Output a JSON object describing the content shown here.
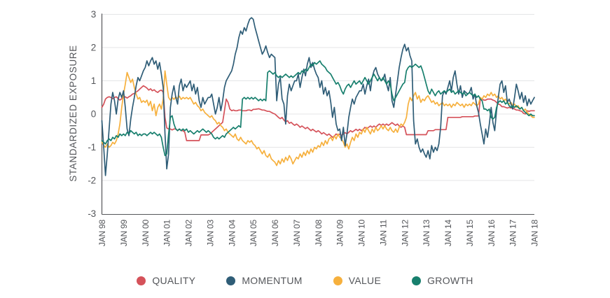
{
  "y_axis": {
    "title": "STANDARDIZED EXPOSURE",
    "ticks": [
      "3",
      "2",
      "1",
      "0",
      "-1",
      "-2",
      "-3"
    ]
  },
  "x_axis": {
    "ticks": [
      "JAN 98",
      "JAN 99",
      "JAN 00",
      "JAN 01",
      "JAN 02",
      "JAN 03",
      "JAN 04",
      "JAN 05",
      "JAN 06",
      "JAN 07",
      "JAN 08",
      "JAN 09",
      "JAN 10",
      "JAN 11",
      "JAN 12",
      "JAN 13",
      "JAN 14",
      "JAN 15",
      "JAN 16",
      "JAN 17",
      "JAN 18"
    ]
  },
  "colors": {
    "quality": "#d5525a",
    "momentum": "#2f5d77",
    "value": "#f6b03d",
    "growth": "#177f6d",
    "grid": "#e4e5e7",
    "axis": "#55565a",
    "text": "#54565a"
  },
  "chart_data": {
    "type": "line",
    "title": "",
    "xlabel": "",
    "ylabel": "STANDARDIZED EXPOSURE",
    "ylim": [
      -3,
      3
    ],
    "grid": true,
    "legend_position": "bottom",
    "x_start": "1998-01",
    "x_end": "2018-01",
    "frequency": "monthly",
    "x_tick_labels": [
      "JAN 98",
      "JAN 99",
      "JAN 00",
      "JAN 01",
      "JAN 02",
      "JAN 03",
      "JAN 04",
      "JAN 05",
      "JAN 06",
      "JAN 07",
      "JAN 08",
      "JAN 09",
      "JAN 10",
      "JAN 11",
      "JAN 12",
      "JAN 13",
      "JAN 14",
      "JAN 15",
      "JAN 16",
      "JAN 17",
      "JAN 18"
    ],
    "series": [
      {
        "name": "QUALITY",
        "color": "#d5525a",
        "values": [
          0.2,
          0.3,
          0.45,
          0.5,
          0.52,
          0.5,
          0.46,
          0.5,
          0.52,
          0.46,
          0.42,
          0.46,
          0.5,
          0.52,
          0.48,
          0.52,
          0.55,
          0.6,
          0.62,
          0.66,
          0.7,
          0.75,
          0.8,
          0.85,
          0.82,
          0.78,
          0.72,
          0.76,
          0.7,
          0.73,
          0.68,
          0.65,
          0.7,
          0.72,
          0.66,
          -0.1,
          -0.42,
          -0.45,
          -0.45,
          -0.48,
          -0.45,
          -0.45,
          -0.5,
          -0.45,
          -0.5,
          -0.5,
          -0.55,
          -0.8,
          -0.8,
          -0.8,
          -0.8,
          -0.8,
          -0.8,
          -0.8,
          -0.8,
          -0.63,
          -0.63,
          -0.63,
          -0.63,
          -0.63,
          -0.6,
          -0.55,
          -0.5,
          -0.45,
          -0.4,
          -0.35,
          -0.3,
          -0.25,
          0.1,
          0.45,
          0.35,
          0.15,
          0.1,
          0.12,
          0.1,
          0.1,
          0.12,
          0.12,
          0.1,
          0.1,
          0.1,
          0.12,
          0.12,
          0.1,
          0.14,
          0.14,
          0.15,
          0.16,
          0.14,
          0.12,
          0.12,
          0.1,
          0.08,
          0.08,
          0.05,
          0.02,
          0.0,
          -0.05,
          -0.1,
          -0.14,
          -0.1,
          -0.18,
          -0.24,
          -0.2,
          -0.28,
          -0.25,
          -0.3,
          -0.34,
          -0.3,
          -0.34,
          -0.4,
          -0.36,
          -0.4,
          -0.44,
          -0.4,
          -0.45,
          -0.5,
          -0.46,
          -0.5,
          -0.54,
          -0.5,
          -0.54,
          -0.6,
          -0.56,
          -0.6,
          -0.64,
          -0.6,
          -0.65,
          -0.7,
          -0.66,
          -0.6,
          -0.64,
          -0.6,
          -0.64,
          -0.6,
          -0.56,
          -0.6,
          -0.55,
          -0.5,
          -0.54,
          -0.5,
          -0.46,
          -0.5,
          -0.46,
          -0.5,
          -0.46,
          -0.4,
          -0.44,
          -0.4,
          -0.36,
          -0.4,
          -0.36,
          -0.4,
          -0.34,
          -0.3,
          -0.34,
          -0.3,
          -0.34,
          -0.3,
          -0.34,
          -0.3,
          -0.26,
          -0.3,
          -0.34,
          -0.3,
          -0.36,
          -0.4,
          -0.36,
          -0.4,
          -0.62,
          -0.62,
          -0.62,
          -0.62,
          -0.62,
          -0.62,
          -0.62,
          -0.62,
          -0.62,
          -0.62,
          -0.62,
          -0.62,
          -0.5,
          -0.5,
          -0.5,
          -0.5,
          -0.47,
          -0.47,
          -0.47,
          -0.47,
          -0.47,
          -0.47,
          -0.47,
          -0.1,
          -0.1,
          -0.1,
          -0.1,
          -0.1,
          -0.1,
          -0.1,
          -0.1,
          -0.08,
          -0.08,
          -0.08,
          -0.08,
          -0.08,
          -0.08,
          -0.08,
          -0.06,
          -0.06,
          -0.06,
          0.45,
          0.45,
          0.42,
          0.42,
          0.45,
          0.45,
          0.45,
          0.42,
          0.4,
          0.35,
          0.3,
          0.28,
          0.22,
          0.22,
          0.2,
          0.18,
          0.2,
          0.18,
          0.18,
          0.15,
          0.12,
          0.12,
          0.1,
          0.08,
          0.02,
          0.0,
          0.1,
          0.08,
          0.1,
          0.1,
          0.1
        ]
      },
      {
        "name": "MOMENTUM",
        "color": "#2f5d77",
        "values": [
          -0.2,
          -1.0,
          -1.85,
          -1.2,
          -0.45,
          0.3,
          0.65,
          0.4,
          0.0,
          0.45,
          0.65,
          0.5,
          0.7,
          0.2,
          -0.45,
          -0.65,
          -0.15,
          0.2,
          0.5,
          0.85,
          1.1,
          1.0,
          1.15,
          1.3,
          1.4,
          1.6,
          1.45,
          1.6,
          1.7,
          1.5,
          1.6,
          1.35,
          1.55,
          1.2,
          0.8,
          -0.6,
          -1.65,
          -1.2,
          0.2,
          0.6,
          0.85,
          0.5,
          0.3,
          0.85,
          1.05,
          0.7,
          0.9,
          0.8,
          0.9,
          1.0,
          0.7,
          0.9,
          0.6,
          0.8,
          0.4,
          0.2,
          0.5,
          0.3,
          0.4,
          0.5,
          0.5,
          0.6,
          0.3,
          0.0,
          0.2,
          0.5,
          0.1,
          0.4,
          0.8,
          1.0,
          1.1,
          1.2,
          1.3,
          1.5,
          1.8,
          2.0,
          2.3,
          2.5,
          2.4,
          2.6,
          2.5,
          2.7,
          2.85,
          2.9,
          2.85,
          2.6,
          2.4,
          2.2,
          2.0,
          1.8,
          1.9,
          2.05,
          1.85,
          1.7,
          1.8,
          1.75,
          1.7,
          0.4,
          0.9,
          1.1,
          0.45,
          0.3,
          -0.3,
          0.55,
          0.9,
          0.7,
          0.85,
          1.0,
          1.0,
          1.2,
          0.8,
          1.1,
          1.35,
          1.15,
          1.5,
          1.7,
          1.4,
          1.55,
          1.35,
          1.2,
          1.1,
          0.8,
          1.0,
          0.6,
          0.8,
          0.55,
          0.7,
          0.35,
          -0.1,
          0.2,
          -0.3,
          -0.5,
          -0.45,
          -0.8,
          -0.4,
          -0.95,
          -0.6,
          -0.1,
          0.2,
          0.45,
          0.3,
          0.5,
          0.6,
          0.7,
          0.7,
          0.9,
          0.6,
          0.85,
          1.05,
          0.7,
          1.1,
          1.3,
          1.4,
          1.2,
          1.1,
          1.0,
          1.05,
          1.2,
          0.9,
          0.7,
          1.1,
          0.4,
          0.2,
          0.6,
          1.0,
          1.4,
          1.7,
          1.95,
          2.1,
          1.9,
          2.0,
          1.75,
          1.6,
          -0.2,
          -0.9,
          -0.75,
          -1.0,
          -1.15,
          -1.05,
          -1.2,
          -1.3,
          -1.1,
          -1.35,
          -0.95,
          -1.15,
          -1.0,
          -1.1,
          -0.9,
          -0.4,
          0.55,
          0.7,
          0.6,
          0.8,
          1.0,
          0.7,
          1.1,
          1.3,
          0.9,
          0.6,
          0.85,
          0.5,
          0.7,
          0.65,
          0.6,
          0.65,
          0.8,
          0.45,
          0.6,
          0.25,
          0.05,
          -0.3,
          -0.6,
          -0.9,
          -0.45,
          -0.7,
          -0.3,
          0.2,
          -0.25,
          -0.5,
          0.1,
          0.5,
          0.9,
          1.0,
          0.65,
          0.85,
          0.35,
          0.45,
          0.3,
          0.15,
          0.5,
          0.9,
          0.7,
          0.45,
          0.65,
          0.35,
          0.55,
          0.25,
          0.45,
          0.3,
          0.4,
          0.5
        ]
      },
      {
        "name": "VALUE",
        "color": "#f6b03d",
        "values": [
          -0.85,
          -0.95,
          -1.0,
          -0.9,
          -1.0,
          -0.95,
          -0.85,
          -0.9,
          -0.8,
          -0.6,
          -0.3,
          0.2,
          0.6,
          0.9,
          1.25,
          1.1,
          0.95,
          1.05,
          0.8,
          0.6,
          0.45,
          0.5,
          0.35,
          0.4,
          0.35,
          0.42,
          0.25,
          0.38,
          0.1,
          0.3,
          -0.05,
          0.2,
          0.3,
          0.15,
          0.45,
          1.3,
          0.9,
          0.5,
          0.42,
          0.5,
          0.44,
          0.52,
          0.46,
          0.54,
          0.44,
          0.5,
          0.46,
          0.5,
          0.45,
          0.5,
          0.4,
          0.3,
          0.35,
          0.25,
          0.2,
          0.1,
          0.15,
          0.05,
          0.0,
          -0.05,
          -0.1,
          -0.05,
          -0.15,
          -0.2,
          -0.3,
          -0.25,
          -0.35,
          -0.4,
          -0.5,
          -0.45,
          -0.55,
          -0.6,
          -0.65,
          -0.7,
          -0.6,
          -0.75,
          -0.8,
          -0.7,
          -0.8,
          -0.85,
          -0.9,
          -0.8,
          -0.85,
          -0.8,
          -0.9,
          -0.95,
          -1.05,
          -1.0,
          -1.1,
          -1.2,
          -1.1,
          -1.25,
          -1.3,
          -1.2,
          -1.35,
          -1.4,
          -1.45,
          -1.55,
          -1.4,
          -1.5,
          -1.35,
          -1.45,
          -1.3,
          -1.4,
          -1.25,
          -1.35,
          -1.5,
          -1.4,
          -1.3,
          -1.35,
          -1.2,
          -1.3,
          -1.15,
          -1.25,
          -1.1,
          -1.2,
          -1.05,
          -1.15,
          -1.0,
          -1.05,
          -0.95,
          -1.0,
          -0.85,
          -0.95,
          -0.8,
          -0.9,
          -0.75,
          -0.7,
          -0.8,
          -0.65,
          -0.75,
          -0.6,
          -0.7,
          -0.75,
          -0.85,
          -1.0,
          -0.9,
          -1.05,
          -0.85,
          -0.7,
          -0.8,
          -0.6,
          -0.7,
          -0.55,
          -0.6,
          -0.45,
          -0.55,
          -0.4,
          -0.5,
          -0.6,
          -0.45,
          -0.55,
          -0.4,
          -0.5,
          -0.45,
          -0.35,
          -0.45,
          -0.35,
          -0.45,
          -0.5,
          -0.4,
          -0.5,
          -0.55,
          -0.45,
          -0.55,
          -0.4,
          -0.3,
          -0.35,
          -0.25,
          -0.1,
          0.3,
          0.5,
          0.4,
          0.55,
          0.65,
          0.45,
          0.55,
          0.35,
          0.45,
          0.4,
          0.5,
          0.55,
          0.45,
          0.35,
          0.4,
          0.3,
          0.35,
          0.25,
          0.3,
          0.35,
          0.25,
          0.3,
          0.25,
          0.3,
          0.2,
          0.3,
          0.25,
          0.35,
          0.3,
          0.25,
          0.3,
          0.2,
          0.3,
          0.25,
          0.3,
          0.25,
          0.35,
          0.3,
          0.25,
          0.3,
          0.5,
          0.45,
          0.55,
          0.5,
          0.6,
          0.55,
          0.65,
          0.55,
          0.6,
          0.5,
          0.55,
          0.45,
          0.5,
          0.4,
          0.45,
          0.35,
          0.3,
          0.35,
          0.25,
          0.3,
          0.2,
          0.25,
          0.15,
          0.2,
          0.1,
          0.15,
          0.05,
          0.0,
          -0.05,
          -0.1,
          -0.1
        ]
      },
      {
        "name": "GROWTH",
        "color": "#177f6d",
        "values": [
          -0.8,
          -0.85,
          -0.9,
          -0.8,
          -0.75,
          -0.8,
          -0.7,
          -0.75,
          -0.65,
          -0.7,
          -0.6,
          -0.65,
          -0.6,
          -0.65,
          -0.55,
          -0.6,
          -0.5,
          -0.55,
          -0.6,
          -0.55,
          -0.65,
          -0.6,
          -0.65,
          -0.6,
          -0.6,
          -0.65,
          -0.6,
          -0.55,
          -0.6,
          -0.55,
          -0.6,
          -0.65,
          -0.6,
          -0.7,
          -1.0,
          -1.25,
          -1.2,
          -0.6,
          -0.1,
          -0.05,
          -0.3,
          -0.45,
          -0.5,
          -0.45,
          -0.5,
          -0.45,
          -0.5,
          -0.45,
          -0.55,
          -0.5,
          -0.55,
          -0.6,
          -0.55,
          -0.5,
          -0.55,
          -0.5,
          -0.45,
          -0.5,
          -0.55,
          -0.5,
          -0.55,
          -0.6,
          -0.7,
          -0.75,
          -0.7,
          -0.75,
          -0.7,
          -0.65,
          -0.7,
          -0.6,
          -0.55,
          -0.5,
          -0.45,
          -0.4,
          -0.45,
          -0.4,
          -0.35,
          -0.4,
          0.45,
          0.5,
          0.45,
          0.5,
          0.45,
          0.5,
          0.45,
          0.5,
          0.45,
          0.4,
          0.45,
          0.4,
          0.45,
          0.4,
          1.25,
          1.3,
          1.25,
          1.2,
          1.25,
          1.15,
          1.1,
          1.15,
          1.1,
          1.15,
          1.2,
          1.15,
          1.1,
          1.15,
          1.1,
          1.15,
          1.2,
          1.25,
          1.2,
          1.3,
          1.25,
          1.35,
          1.3,
          1.4,
          1.5,
          1.45,
          1.55,
          1.5,
          1.55,
          1.6,
          1.5,
          1.45,
          1.4,
          1.3,
          1.25,
          1.2,
          1.1,
          1.0,
          0.9,
          0.95,
          0.85,
          0.7,
          0.6,
          0.75,
          0.85,
          0.9,
          0.8,
          0.9,
          1.0,
          0.9,
          0.95,
          1.0,
          0.9,
          1.0,
          1.1,
          1.0,
          0.9,
          1.0,
          1.1,
          1.2,
          1.1,
          1.0,
          1.1,
          1.0,
          1.1,
          1.0,
          0.9,
          1.0,
          0.9,
          0.6,
          0.4,
          0.5,
          0.6,
          0.7,
          0.8,
          0.9,
          0.95,
          1.3,
          1.4,
          1.45,
          1.4,
          1.45,
          1.5,
          1.45,
          1.4,
          1.45,
          1.3,
          1.1,
          0.9,
          0.7,
          0.6,
          0.75,
          0.65,
          0.55,
          0.65,
          0.7,
          0.6,
          0.65,
          0.7,
          0.65,
          0.7,
          0.75,
          0.65,
          0.7,
          0.6,
          0.65,
          0.7,
          0.65,
          0.6,
          0.65,
          0.55,
          0.6,
          0.65,
          0.6,
          0.55,
          0.6,
          0.5,
          0.55,
          0.45,
          0.4,
          0.15,
          0.15,
          0.1,
          0.15,
          -0.1,
          -0.15,
          -0.1,
          0.2,
          0.35,
          0.4,
          0.35,
          0.4,
          0.3,
          0.35,
          0.25,
          0.2,
          0.25,
          0.2,
          0.25,
          0.2,
          0.15,
          0.2,
          0.1,
          0.05,
          0.0,
          -0.05,
          0.0,
          -0.05,
          -0.05
        ]
      }
    ]
  },
  "legend": {
    "items": [
      "QUALITY",
      "MOMENTUM",
      "VALUE",
      "GROWTH"
    ]
  }
}
